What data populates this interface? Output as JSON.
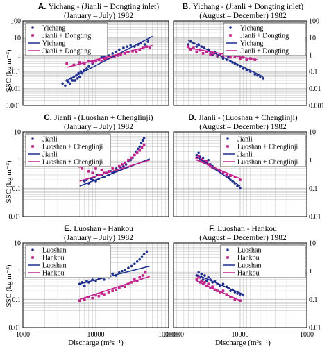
{
  "figure": {
    "ylabel": "SSC (kg m⁻³)",
    "xlabel": "Discharge (m³s⁻¹)"
  },
  "colors": {
    "blue": "#1f2f8f",
    "magenta": "#c2228c",
    "grid": "#bdbdbd",
    "axis": "#000000"
  },
  "chart_data": [
    {
      "id": "A",
      "type": "scatter",
      "scale": "log-log",
      "title_letter": "A.",
      "title": "Yichang - (Jianli + Dongting inlet)",
      "subtitle": "(January – July) 1982",
      "xlim": [
        1000,
        100000
      ],
      "ylim": [
        0.001,
        100
      ],
      "ytick_side": "left",
      "legend": "top-left",
      "series": [
        {
          "name": "Yichang",
          "kind": "points",
          "color": "blue",
          "x": [
            3500,
            3800,
            4000,
            4200,
            4400,
            4600,
            4800,
            5000,
            5200,
            5400,
            5600,
            5800,
            6000,
            6200,
            6500,
            7000,
            7500,
            8000,
            9000,
            10000,
            11000,
            12000,
            13000,
            14000,
            15000,
            17000,
            19000,
            21000,
            24000,
            27000,
            30000,
            34000,
            38000,
            42000,
            47000,
            52000
          ],
          "y": [
            0.02,
            0.015,
            0.03,
            0.025,
            0.02,
            0.04,
            0.03,
            0.05,
            0.03,
            0.06,
            0.04,
            0.08,
            0.05,
            0.1,
            0.08,
            0.12,
            0.15,
            0.2,
            0.3,
            0.4,
            0.5,
            0.7,
            0.8,
            1.0,
            0.9,
            1.2,
            1.5,
            2.0,
            2.5,
            3.0,
            3.5,
            3.0,
            4.0,
            5.0,
            4.0,
            6.0
          ]
        },
        {
          "name": "Jianli + Dongting",
          "kind": "points",
          "color": "magenta",
          "x": [
            4000,
            5000,
            6000,
            7000,
            8000,
            9000,
            10000,
            11000,
            12000,
            13000,
            14000,
            16000,
            18000,
            20000,
            22000,
            25000,
            28000,
            32000,
            36000,
            40000,
            45000,
            50000,
            55000
          ],
          "y": [
            0.3,
            0.25,
            0.35,
            0.3,
            0.4,
            0.35,
            0.45,
            0.5,
            0.4,
            0.6,
            0.55,
            0.7,
            0.8,
            0.9,
            1.0,
            1.2,
            1.4,
            1.6,
            1.5,
            2.0,
            2.5,
            3.0,
            2.5
          ]
        },
        {
          "name": "Yichang",
          "kind": "line",
          "color": "blue",
          "x": [
            4000,
            60000
          ],
          "y": [
            0.03,
            12
          ]
        },
        {
          "name": "Jianli + Dongting",
          "kind": "line",
          "color": "magenta",
          "x": [
            4000,
            60000
          ],
          "y": [
            0.18,
            3.5
          ]
        }
      ]
    },
    {
      "id": "B",
      "type": "scatter",
      "scale": "log-log",
      "title_letter": "B.",
      "title": "Yichang - (Jianli + Dongting inlet)",
      "subtitle": "(August – December) 1982",
      "xlim": [
        100000,
        1000
      ],
      "ylim": [
        0.001,
        100
      ],
      "ytick_side": "right",
      "legend": "top-right",
      "series": [
        {
          "name": "Yichang",
          "kind": "points",
          "color": "blue",
          "x": [
            60000,
            55000,
            50000,
            45000,
            42000,
            40000,
            38000,
            35000,
            32000,
            30000,
            28000,
            26000,
            24000,
            22000,
            20000,
            18000,
            16000,
            15000,
            14000,
            13000,
            12000,
            11000,
            10000,
            9000,
            8000,
            7000,
            6000,
            5500,
            5000,
            4500
          ],
          "y": [
            4.0,
            6.0,
            5.0,
            3.0,
            4.0,
            2.0,
            3.0,
            2.5,
            1.5,
            2.0,
            1.2,
            1.0,
            1.5,
            0.8,
            1.0,
            0.6,
            0.5,
            0.7,
            0.4,
            0.35,
            0.3,
            0.25,
            0.2,
            0.15,
            0.12,
            0.1,
            0.07,
            0.06,
            0.05,
            0.04
          ]
        },
        {
          "name": "Jianli + Dongting",
          "kind": "points",
          "color": "magenta",
          "x": [
            60000,
            55000,
            50000,
            45000,
            40000,
            36000,
            32000,
            28000,
            25000,
            22000,
            20000,
            18000,
            16000,
            14000,
            12000,
            10000,
            9000,
            8000,
            7000,
            6000
          ],
          "y": [
            3.0,
            2.0,
            2.5,
            1.5,
            1.8,
            1.2,
            1.5,
            1.0,
            1.2,
            0.9,
            1.1,
            0.8,
            0.9,
            0.7,
            0.8,
            0.6,
            0.7,
            0.5,
            0.6,
            0.5
          ]
        },
        {
          "name": "Yichang",
          "kind": "line",
          "color": "blue",
          "x": [
            60000,
            4500
          ],
          "y": [
            7.0,
            0.05
          ]
        },
        {
          "name": "Jianli + Dongting",
          "kind": "line",
          "color": "magenta",
          "x": [
            60000,
            5500
          ],
          "y": [
            2.5,
            0.5
          ]
        }
      ]
    },
    {
      "id": "C",
      "type": "scatter",
      "scale": "log-log",
      "title_letter": "C.",
      "title": "Jianli - (Luoshan + Chenglinji)",
      "subtitle": "(January – July) 1982",
      "xlim": [
        1000,
        100000
      ],
      "ylim": [
        0.01,
        10
      ],
      "ytick_side": "left",
      "legend": "top-left",
      "series": [
        {
          "name": "Jianli",
          "kind": "points",
          "color": "blue",
          "x": [
            7000,
            7500,
            8000,
            8500,
            9000,
            9500,
            10000,
            10500,
            11000,
            12000,
            13000,
            14000,
            15000,
            16000,
            17000,
            18000,
            19000,
            20000,
            22000,
            24000,
            26000,
            28000,
            30000,
            32000,
            34000,
            36000,
            38000,
            40000,
            42000,
            44000,
            46000
          ],
          "y": [
            0.18,
            0.2,
            0.15,
            0.22,
            0.2,
            0.25,
            0.18,
            0.3,
            0.22,
            0.3,
            0.25,
            0.35,
            0.3,
            0.4,
            0.35,
            0.4,
            0.5,
            0.45,
            0.55,
            0.6,
            0.7,
            0.9,
            1.0,
            1.2,
            1.5,
            2.0,
            2.5,
            3.0,
            4.0,
            5.0,
            6.0
          ]
        },
        {
          "name": "Luoshan + Chenglinji",
          "kind": "points",
          "color": "magenta",
          "x": [
            6000,
            6500,
            7000,
            8000,
            9000,
            10000,
            11000,
            12000,
            13000,
            15000,
            17000,
            19000,
            21000,
            23000,
            25000,
            28000,
            31000,
            34000,
            37000,
            40000,
            43000,
            46000
          ],
          "y": [
            0.6,
            0.5,
            0.8,
            0.4,
            0.35,
            0.5,
            0.3,
            0.45,
            0.35,
            0.4,
            0.5,
            0.45,
            0.6,
            0.7,
            0.8,
            1.0,
            1.2,
            1.5,
            1.8,
            2.2,
            2.8,
            3.5
          ]
        },
        {
          "name": "Jianli",
          "kind": "line",
          "color": "blue",
          "x": [
            6000,
            55000
          ],
          "y": [
            0.12,
            1.1
          ]
        },
        {
          "name": "Luoshan + Chenglinji",
          "kind": "line",
          "color": "magenta",
          "x": [
            6000,
            55000
          ],
          "y": [
            0.18,
            1.0
          ]
        }
      ]
    },
    {
      "id": "D",
      "type": "scatter",
      "scale": "log-log",
      "title_letter": "D.",
      "title": "Jianli - (Luoshan + Chenglinji)",
      "subtitle": "(August – December) 1982",
      "xlim": [
        100000,
        1000
      ],
      "ylim": [
        0.01,
        10
      ],
      "ytick_side": "right",
      "legend": "top-right",
      "series": [
        {
          "name": "Jianli",
          "kind": "points",
          "color": "blue",
          "x": [
            45000,
            42000,
            40000,
            38000,
            36000,
            34000,
            32000,
            30000,
            28000,
            26000,
            24000,
            22000,
            20000,
            18000,
            16000,
            15000,
            14000,
            13000,
            12000,
            11000,
            10000
          ],
          "y": [
            1.5,
            1.8,
            1.3,
            1.0,
            1.2,
            0.9,
            0.8,
            1.0,
            0.7,
            0.6,
            0.5,
            0.45,
            0.4,
            0.35,
            0.3,
            0.25,
            0.2,
            0.18,
            0.15,
            0.12,
            0.1
          ]
        },
        {
          "name": "Luoshan + Chenglinji",
          "kind": "points",
          "color": "magenta",
          "x": [
            45000,
            42000,
            40000,
            38000,
            36000,
            34000,
            32000,
            30000,
            28000,
            26000,
            24000,
            22000,
            20000,
            18000,
            16000,
            14000,
            12000,
            10000
          ],
          "y": [
            1.2,
            1.4,
            1.0,
            1.1,
            0.9,
            0.8,
            0.9,
            0.7,
            0.6,
            0.55,
            0.5,
            0.45,
            0.4,
            0.35,
            0.3,
            0.28,
            0.25,
            0.2
          ]
        },
        {
          "name": "Jianli",
          "kind": "line",
          "color": "blue",
          "x": [
            45000,
            10000
          ],
          "y": [
            1.3,
            0.12
          ]
        },
        {
          "name": "Luoshan + Chenglinji",
          "kind": "line",
          "color": "magenta",
          "x": [
            45000,
            10000
          ],
          "y": [
            1.0,
            0.22
          ]
        }
      ]
    },
    {
      "id": "E",
      "type": "scatter",
      "scale": "log-log",
      "title_letter": "E.",
      "title": "Luoshan - Hankou",
      "subtitle": "(January – July) 1982",
      "xlim": [
        1000,
        100000
      ],
      "ylim": [
        0.01,
        10
      ],
      "ytick_side": "left",
      "legend": "top-left",
      "xticks": [
        1000,
        10000,
        100000
      ],
      "xticklabels": [
        "1000",
        "10000",
        "100000"
      ],
      "series": [
        {
          "name": "Luoshan",
          "kind": "points",
          "color": "blue",
          "x": [
            6000,
            6500,
            7000,
            7500,
            8000,
            9000,
            10000,
            11000,
            12000,
            13000,
            14000,
            15000,
            17000,
            19000,
            21000,
            23000,
            25000,
            28000,
            31000,
            34000,
            37000,
            40000,
            43000,
            46000,
            50000
          ],
          "y": [
            0.35,
            0.4,
            0.3,
            0.45,
            0.4,
            0.5,
            0.45,
            0.55,
            0.6,
            0.5,
            0.7,
            0.6,
            0.8,
            0.7,
            0.9,
            1.0,
            1.1,
            1.3,
            1.5,
            1.8,
            2.2,
            2.6,
            3.2,
            4.0,
            5.0
          ]
        },
        {
          "name": "Hankou",
          "kind": "points",
          "color": "magenta",
          "x": [
            6000,
            7000,
            8000,
            9000,
            10000,
            11000,
            12000,
            13000,
            15000,
            17000,
            19000,
            21000,
            23000,
            25000,
            28000,
            31000,
            34000,
            37000,
            40000,
            44000,
            48000
          ],
          "y": [
            0.09,
            0.1,
            0.12,
            0.11,
            0.14,
            0.13,
            0.16,
            0.15,
            0.18,
            0.2,
            0.22,
            0.25,
            0.3,
            0.28,
            0.35,
            0.4,
            0.5,
            0.45,
            0.6,
            0.7,
            0.9
          ]
        },
        {
          "name": "Luoshan",
          "kind": "line",
          "color": "blue",
          "x": [
            6000,
            55000
          ],
          "y": [
            0.35,
            1.5
          ]
        },
        {
          "name": "Hankou",
          "kind": "line",
          "color": "magenta",
          "x": [
            6000,
            55000
          ],
          "y": [
            0.1,
            0.65
          ]
        }
      ]
    },
    {
      "id": "F",
      "type": "scatter",
      "scale": "log-log",
      "title_letter": "F.",
      "title": "Luoshan - Hankou",
      "subtitle": "(August – December) 1982",
      "xlim": [
        100000,
        1000
      ],
      "ylim": [
        0.01,
        10
      ],
      "ytick_side": "right",
      "legend": "top-right",
      "xticks": [
        100000,
        10000,
        1000
      ],
      "xticklabels": [
        "100000",
        "10000",
        "1000"
      ],
      "series": [
        {
          "name": "Luoshan",
          "kind": "points",
          "color": "blue",
          "x": [
            45000,
            42000,
            40000,
            38000,
            36000,
            34000,
            32000,
            30000,
            28000,
            26000,
            24000,
            22000,
            20000,
            18000,
            16000,
            15000,
            14000,
            13000,
            12000,
            11000,
            10000,
            9000
          ],
          "y": [
            0.7,
            0.9,
            0.6,
            0.8,
            0.5,
            0.7,
            0.45,
            0.6,
            0.5,
            0.4,
            0.45,
            0.35,
            0.3,
            0.35,
            0.28,
            0.25,
            0.2,
            0.22,
            0.18,
            0.16,
            0.15,
            0.14
          ]
        },
        {
          "name": "Hankou",
          "kind": "points",
          "color": "magenta",
          "x": [
            45000,
            42000,
            40000,
            38000,
            36000,
            34000,
            32000,
            30000,
            28000,
            26000,
            24000,
            22000,
            20000,
            18000,
            16000,
            14000,
            12000,
            10000
          ],
          "y": [
            0.5,
            0.6,
            0.4,
            0.45,
            0.35,
            0.4,
            0.3,
            0.35,
            0.25,
            0.28,
            0.22,
            0.2,
            0.18,
            0.2,
            0.15,
            0.12,
            0.1,
            0.09
          ]
        },
        {
          "name": "Luoshan",
          "kind": "line",
          "color": "blue",
          "x": [
            45000,
            9000
          ],
          "y": [
            0.75,
            0.15
          ]
        },
        {
          "name": "Hankou",
          "kind": "line",
          "color": "magenta",
          "x": [
            45000,
            10000
          ],
          "y": [
            0.45,
            0.09
          ]
        }
      ]
    }
  ]
}
